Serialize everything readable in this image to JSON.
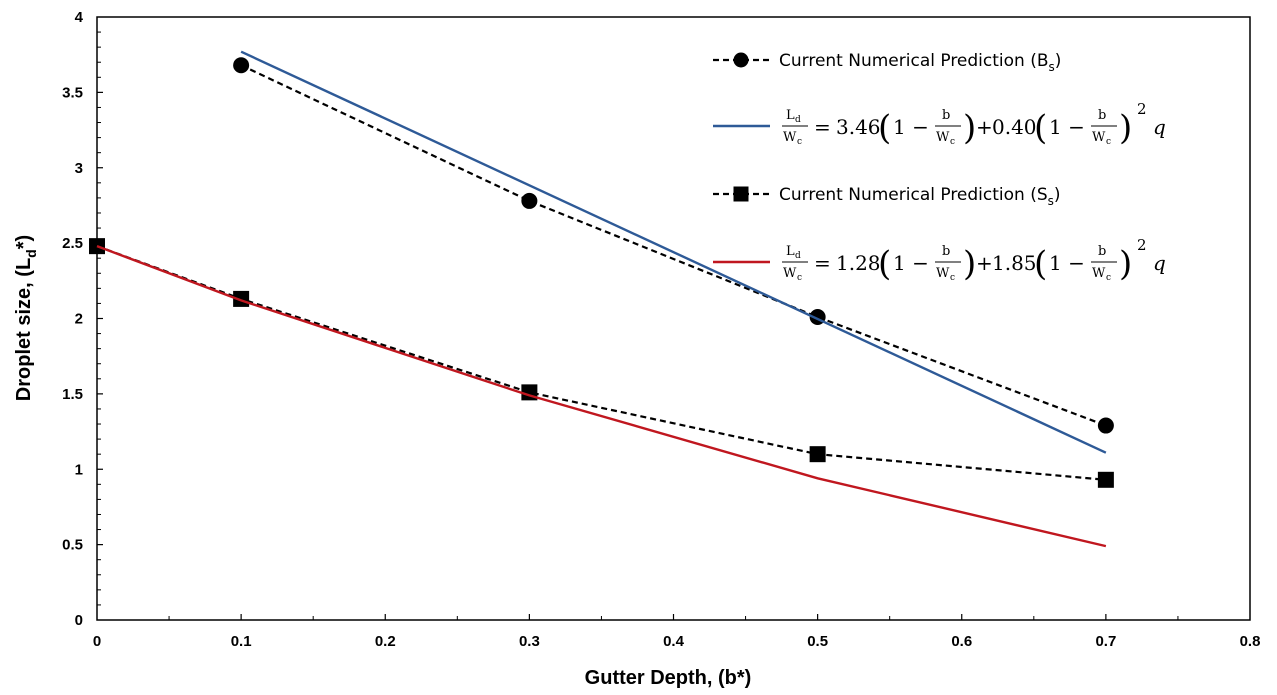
{
  "chart_data": {
    "type": "line",
    "xlabel": "Gutter Depth, (b*)",
    "ylabel_main": "Droplet size, (L",
    "ylabel_sub": "d",
    "ylabel_end": "*)",
    "xlim": [
      0,
      0.8
    ],
    "ylim": [
      0,
      4
    ],
    "x_ticks": [
      "0",
      "0.1",
      "0.2",
      "0.3",
      "0.4",
      "0.5",
      "0.6",
      "0.7",
      "0.8"
    ],
    "y_ticks": [
      "0",
      "0.5",
      "1",
      "1.5",
      "2",
      "2.5",
      "3",
      "3.5",
      "4"
    ],
    "grid": false,
    "legend_position": "top-right",
    "series": [
      {
        "label_main": "Current Numerical Prediction (B",
        "label_sub": "s",
        "label_end": ")",
        "style": "dashed-marker",
        "marker": "circle",
        "color": "#000000",
        "x": [
          0.1,
          0.3,
          0.5,
          0.7
        ],
        "y": [
          3.68,
          2.78,
          2.01,
          1.29
        ]
      },
      {
        "label_eq": {
          "lhs_num": "L",
          "lhs_num_sub": "d",
          "lhs_den": "W",
          "lhs_den_sub": "c",
          "equals": "=",
          "coef1": "3.46",
          "open": "(",
          "one": "1 −",
          "frac_num": "b",
          "frac_den": "W",
          "frac_den_sub": "c",
          "close": ")",
          "plus": "+",
          "coef2": "0.40",
          "power": "2",
          "q": "q"
        },
        "style": "solid",
        "color": "#2E5A97",
        "x": [
          0.1,
          0.7
        ],
        "y": [
          3.77,
          1.11
        ]
      },
      {
        "label_main": "Current Numerical Prediction (S",
        "label_sub": "s",
        "label_end": ")",
        "style": "dashed-marker",
        "marker": "square",
        "color": "#000000",
        "x": [
          0,
          0.1,
          0.3,
          0.5,
          0.7
        ],
        "y": [
          2.48,
          2.13,
          1.51,
          1.1,
          0.93
        ]
      },
      {
        "label_eq": {
          "lhs_num": "L",
          "lhs_num_sub": "d",
          "lhs_den": "W",
          "lhs_den_sub": "c",
          "equals": "=",
          "coef1": "1.28",
          "open": "(",
          "one": "1 −",
          "frac_num": "b",
          "frac_den": "W",
          "frac_den_sub": "c",
          "close": ")",
          "plus": "+",
          "coef2": "1.85",
          "power": "2",
          "q": "q"
        },
        "style": "solid",
        "color": "#C0171F",
        "x": [
          0,
          0.1,
          0.3,
          0.5,
          0.7
        ],
        "y": [
          2.48,
          2.12,
          1.49,
          0.94,
          0.49
        ]
      }
    ]
  }
}
